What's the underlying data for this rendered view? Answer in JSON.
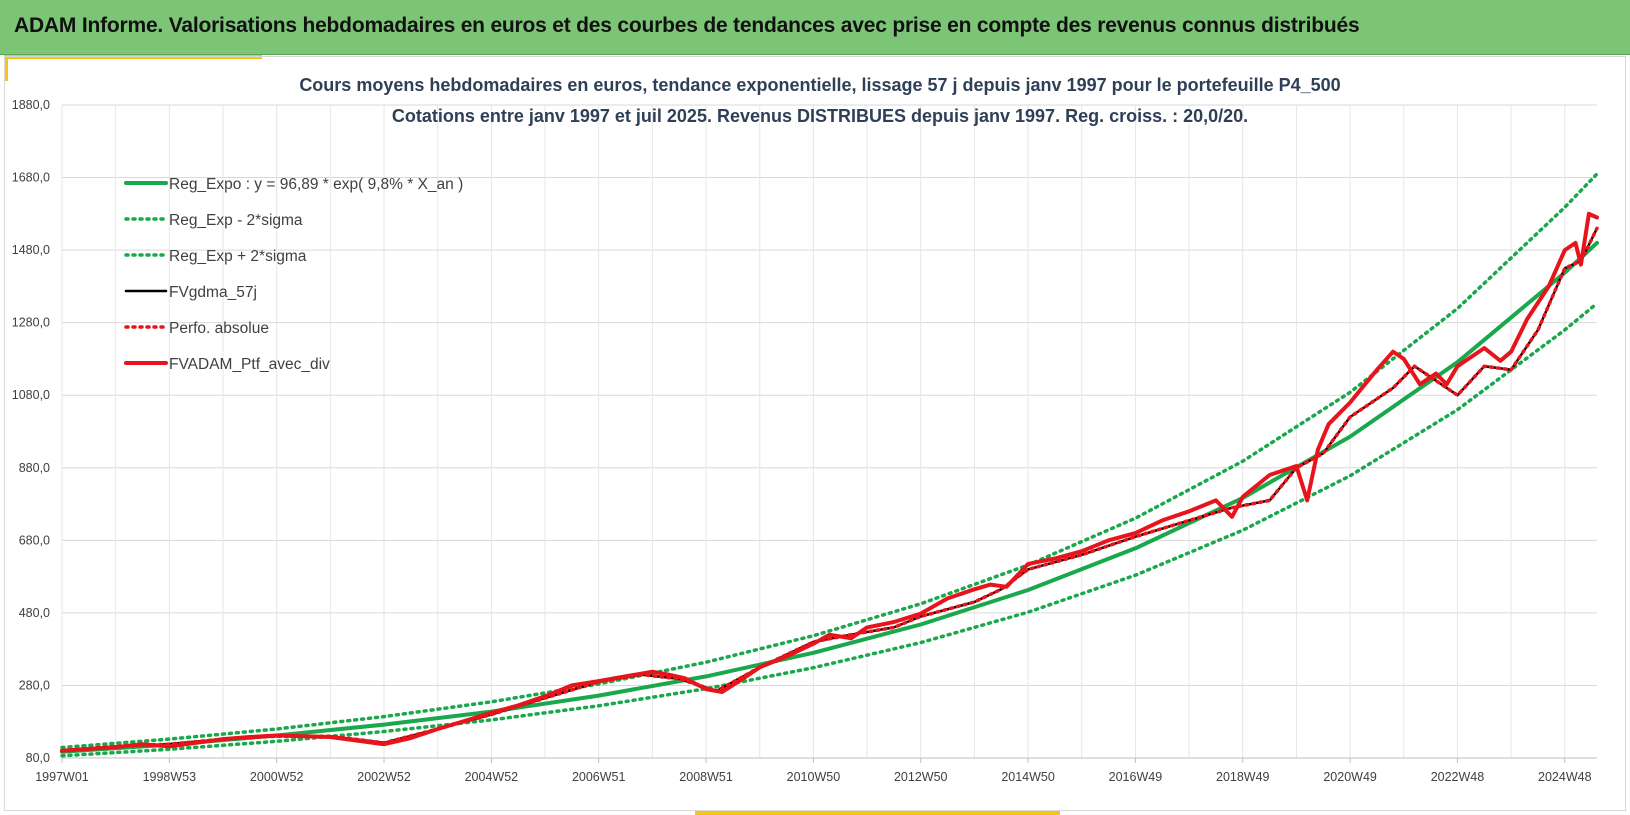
{
  "header": {
    "title": "ADAM Informe. Valorisations hebdomadaires en euros et des courbes de tendances avec prise en compte des revenus connus distribués"
  },
  "colors": {
    "header_bg": "#7cc576",
    "accent": "#f5c518",
    "trend_green": "#1aa84c",
    "series_red": "#e8141c",
    "series_black": "#000000",
    "grid": "#d9d9d9"
  },
  "chart_data": {
    "type": "line",
    "title_line1": "Cours moyens hebdomadaires  en euros, tendance exponentielle, lissage 57 j depuis janv 1997 pour le portefeuille P4_500",
    "title_line2": "Cotations entre janv 1997 et juil 2025. Revenus DISTRIBUES depuis janv 1997. Reg. croiss. : 20,0/20.",
    "xlabel": "",
    "ylabel": "",
    "xlim": [
      1997.0,
      2025.6
    ],
    "ylim": [
      80,
      1880
    ],
    "yticks": [
      80,
      280,
      480,
      680,
      880,
      1080,
      1280,
      1480,
      1680,
      1880
    ],
    "ytick_labels": [
      "80,0",
      "280,0",
      "480,0",
      "680,0",
      "880,0",
      "1080,0",
      "1280,0",
      "1480,0",
      "1680,0",
      "1880,0"
    ],
    "xticks": [
      {
        "x": 1997.0,
        "label": "1997W01"
      },
      {
        "x": 1999.0,
        "label": "1998W53"
      },
      {
        "x": 2001.0,
        "label": "2000W52"
      },
      {
        "x": 2003.0,
        "label": "2002W52"
      },
      {
        "x": 2005.0,
        "label": "2004W52"
      },
      {
        "x": 2007.0,
        "label": "2006W51"
      },
      {
        "x": 2009.0,
        "label": "2008W51"
      },
      {
        "x": 2011.0,
        "label": "2010W50"
      },
      {
        "x": 2013.0,
        "label": "2012W50"
      },
      {
        "x": 2015.0,
        "label": "2014W50"
      },
      {
        "x": 2017.0,
        "label": "2016W49"
      },
      {
        "x": 2019.0,
        "label": "2018W49"
      },
      {
        "x": 2021.0,
        "label": "2020W49"
      },
      {
        "x": 2023.0,
        "label": "2022W48"
      },
      {
        "x": 2025.0,
        "label": "2024W48"
      }
    ],
    "grid": true,
    "legend_position": "top-left",
    "series": [
      {
        "name": "Reg_Expo : y = 96,89 * exp( 9,8% *  X_an )",
        "style": "solid-thick",
        "color": "#1aa84c",
        "x": [
          1997,
          1999,
          2001,
          2003,
          2005,
          2007,
          2009,
          2011,
          2013,
          2015,
          2017,
          2019,
          2021,
          2023,
          2025,
          2025.6
        ],
        "y": [
          97,
          117,
          142,
          172,
          208,
          252,
          305,
          370,
          448,
          543,
          658,
          797,
          966,
          1171,
          1418,
          1500
        ]
      },
      {
        "name": "Reg_Exp - 2*sigma",
        "style": "dotted",
        "color": "#1aa84c",
        "x": [
          1997,
          1999,
          2001,
          2003,
          2005,
          2007,
          2009,
          2011,
          2013,
          2015,
          2017,
          2019,
          2021,
          2023,
          2025,
          2025.6
        ],
        "y": [
          86,
          104,
          126,
          153,
          185,
          224,
          271,
          329,
          398,
          482,
          584,
          708,
          858,
          1040,
          1260,
          1333
        ]
      },
      {
        "name": "Reg_Exp + 2*sigma",
        "style": "dotted",
        "color": "#1aa84c",
        "x": [
          1997,
          1999,
          2001,
          2003,
          2005,
          2007,
          2009,
          2011,
          2013,
          2015,
          2017,
          2019,
          2021,
          2023,
          2025,
          2025.6
        ],
        "y": [
          109,
          132,
          160,
          194,
          235,
          284,
          344,
          417,
          505,
          612,
          741,
          898,
          1088,
          1319,
          1598,
          1690
        ]
      },
      {
        "name": "FVgdma_57j",
        "style": "solid",
        "color": "#000000",
        "x": [
          1997,
          1998,
          1999,
          2000,
          2001,
          2002,
          2003,
          2004,
          2005,
          2006,
          2007,
          2007.8,
          2008.5,
          2009.2,
          2010,
          2011,
          2011.7,
          2012.5,
          2013,
          2014,
          2014.5,
          2015,
          2016,
          2017,
          2018,
          2018.8,
          2019.5,
          2020,
          2020.5,
          2021,
          2021.8,
          2022.2,
          2022.6,
          2023,
          2023.5,
          2024,
          2024.5,
          2025,
          2025.3,
          2025.6
        ],
        "y": [
          100,
          112,
          118,
          132,
          140,
          140,
          122,
          160,
          200,
          245,
          290,
          310,
          298,
          265,
          330,
          400,
          420,
          440,
          470,
          510,
          545,
          600,
          640,
          690,
          735,
          770,
          790,
          880,
          920,
          1020,
          1100,
          1160,
          1120,
          1080,
          1160,
          1150,
          1260,
          1430,
          1450,
          1540
        ]
      },
      {
        "name": "Perfo. absolue",
        "style": "dotted",
        "color": "#e8141c",
        "x": [
          1997,
          1998,
          1999,
          2000,
          2001,
          2002,
          2003,
          2004,
          2005,
          2006,
          2007,
          2007.8,
          2008.5,
          2009.2,
          2010,
          2011,
          2011.7,
          2012.5,
          2013,
          2014,
          2014.5,
          2015,
          2016,
          2017,
          2018,
          2018.8,
          2019.5,
          2020,
          2020.5,
          2021,
          2021.8,
          2022.2,
          2022.6,
          2023,
          2023.5,
          2024,
          2024.5,
          2025,
          2025.3,
          2025.6
        ],
        "y": [
          100,
          112,
          118,
          132,
          140,
          140,
          122,
          160,
          200,
          245,
          290,
          310,
          298,
          265,
          330,
          400,
          420,
          440,
          470,
          510,
          545,
          600,
          640,
          690,
          735,
          770,
          790,
          880,
          920,
          1020,
          1100,
          1160,
          1120,
          1080,
          1160,
          1150,
          1260,
          1430,
          1450,
          1540
        ]
      },
      {
        "name": "FVADAM_Ptf_avec_div",
        "style": "solid-thick",
        "color": "#e8141c",
        "x": [
          1997,
          1997.5,
          1998,
          1998.5,
          1999,
          1999.5,
          2000,
          2000.5,
          2001,
          2001.5,
          2002,
          2002.5,
          2003,
          2003.5,
          2004,
          2004.5,
          2005,
          2005.5,
          2006,
          2006.5,
          2007,
          2007.5,
          2008,
          2008.3,
          2008.6,
          2009,
          2009.3,
          2009.7,
          2010,
          2010.5,
          2011,
          2011.3,
          2011.7,
          2012,
          2012.5,
          2013,
          2013.5,
          2014,
          2014.3,
          2014.6,
          2015,
          2015.5,
          2016,
          2016.5,
          2017,
          2017.5,
          2018,
          2018.5,
          2018.8,
          2019,
          2019.5,
          2020,
          2020.2,
          2020.4,
          2020.6,
          2021,
          2021.5,
          2021.8,
          2022,
          2022.3,
          2022.6,
          2022.8,
          2023,
          2023.5,
          2023.8,
          2024,
          2024.3,
          2024.7,
          2025,
          2025.2,
          2025.3,
          2025.45,
          2025.6
        ],
        "y": [
          100,
          105,
          110,
          118,
          112,
          122,
          132,
          138,
          142,
          140,
          138,
          128,
          118,
          135,
          160,
          182,
          205,
          225,
          250,
          280,
          292,
          305,
          318,
          310,
          300,
          270,
          262,
          300,
          330,
          360,
          395,
          420,
          410,
          440,
          455,
          478,
          520,
          545,
          558,
          552,
          615,
          630,
          650,
          680,
          700,
          735,
          760,
          790,
          745,
          800,
          860,
          885,
          790,
          930,
          1000,
          1060,
          1150,
          1200,
          1180,
          1110,
          1140,
          1110,
          1160,
          1210,
          1175,
          1200,
          1290,
          1380,
          1480,
          1500,
          1440,
          1580,
          1570
        ]
      }
    ]
  }
}
